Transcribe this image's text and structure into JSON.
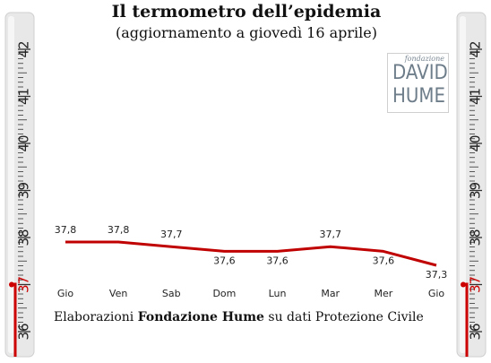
{
  "title": "Il termometro dell’epidemia",
  "subtitle": "(aggiornamento a giovedì 16 aprile)",
  "caption": {
    "pre": "Elaborazioni ",
    "bold": "Fondazione Hume",
    "post": " su dati Protezione Civile"
  },
  "logo": {
    "top": "fondazione",
    "line1": "DAVID",
    "line2": "HUME"
  },
  "thermometer": {
    "min": 36,
    "max": 42,
    "labels": [
      "36",
      "37",
      "38",
      "39",
      "40",
      "41",
      "42"
    ],
    "mercury_level": 37,
    "highlight_label": "37",
    "highlight_color": "#cc0000",
    "glass_color": "#e8e8e8"
  },
  "colors": {
    "line": "#c00000",
    "text": "#222222"
  },
  "chart_data": {
    "type": "line",
    "categories": [
      "Gio",
      "Ven",
      "Sab",
      "Dom",
      "Lun",
      "Mar",
      "Mer",
      "Gio"
    ],
    "values": [
      37.8,
      37.8,
      37.7,
      37.6,
      37.6,
      37.7,
      37.6,
      37.3
    ],
    "value_labels": [
      "37,8",
      "37,8",
      "37,7",
      "37,6",
      "37,6",
      "37,7",
      "37,6",
      "37,3"
    ],
    "title": "Il termometro dell’epidemia",
    "subtitle": "(aggiornamento a giovedì 16 aprile)",
    "xlabel": "",
    "ylabel": "",
    "ylim": [
      36,
      42
    ],
    "grid": false,
    "legend": "none"
  }
}
